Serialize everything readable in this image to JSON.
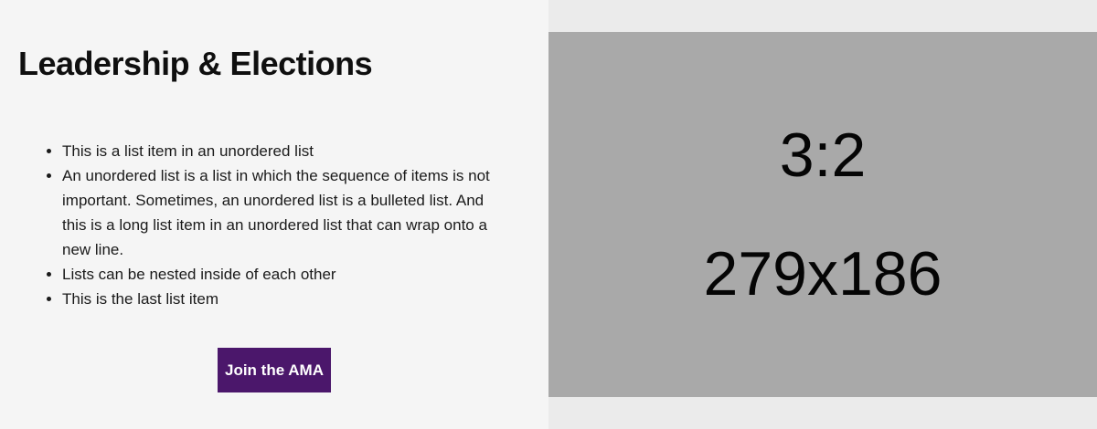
{
  "content": {
    "title": "Leadership & Elections",
    "list_items": [
      "This is a list item in an unordered list",
      "An unordered list is a list in which the sequence of items is not important. Sometimes, an unordered list is a bulleted list. And this is a long list item in an unordered list that can wrap onto a new line.",
      "Lists can be nested inside of each other",
      "This is the last list item"
    ],
    "button_label": "Join the AMA"
  },
  "media": {
    "ratio_text": "3:2",
    "size_text": "279x186"
  },
  "colors": {
    "background": "#f5f5f5",
    "button": "#4b176b",
    "placeholder": "#a9a9a9",
    "media_background": "#ebebeb"
  }
}
